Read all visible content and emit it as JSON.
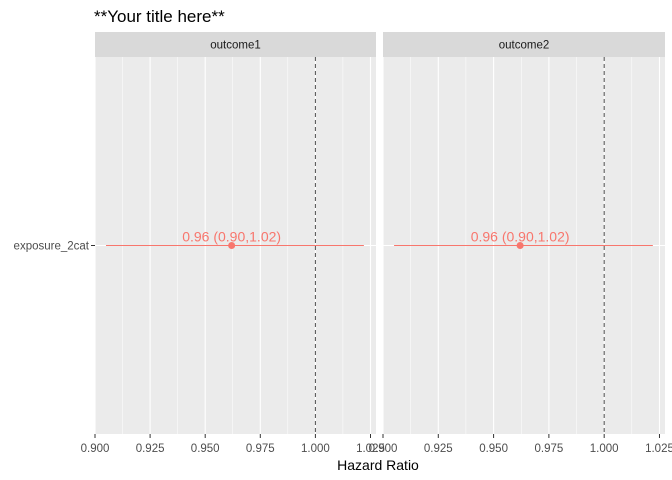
{
  "chart_data": {
    "type": "forest",
    "title": "**Your title here**",
    "xlabel": "Hazard Ratio",
    "ylabel": "",
    "xlim": [
      0.9,
      1.025
    ],
    "x_ticks": [
      0.9,
      0.925,
      0.95,
      0.975,
      1.0,
      1.025
    ],
    "x_tick_labels": [
      "0.900",
      "0.925",
      "0.950",
      "0.975",
      "1.000",
      "1.025"
    ],
    "reference_line": 1.0,
    "categories": [
      "exposure_2cat"
    ],
    "color": "#F8766D",
    "panels": [
      {
        "facet": "outcome1",
        "points": [
          {
            "category": "exposure_2cat",
            "hr": 0.962,
            "lower": 0.905,
            "upper": 1.022,
            "label": "0.96 (0.90,1.02)"
          }
        ]
      },
      {
        "facet": "outcome2",
        "points": [
          {
            "category": "exposure_2cat",
            "hr": 0.962,
            "lower": 0.905,
            "upper": 1.022,
            "label": "0.96 (0.90,1.02)"
          }
        ]
      }
    ]
  }
}
